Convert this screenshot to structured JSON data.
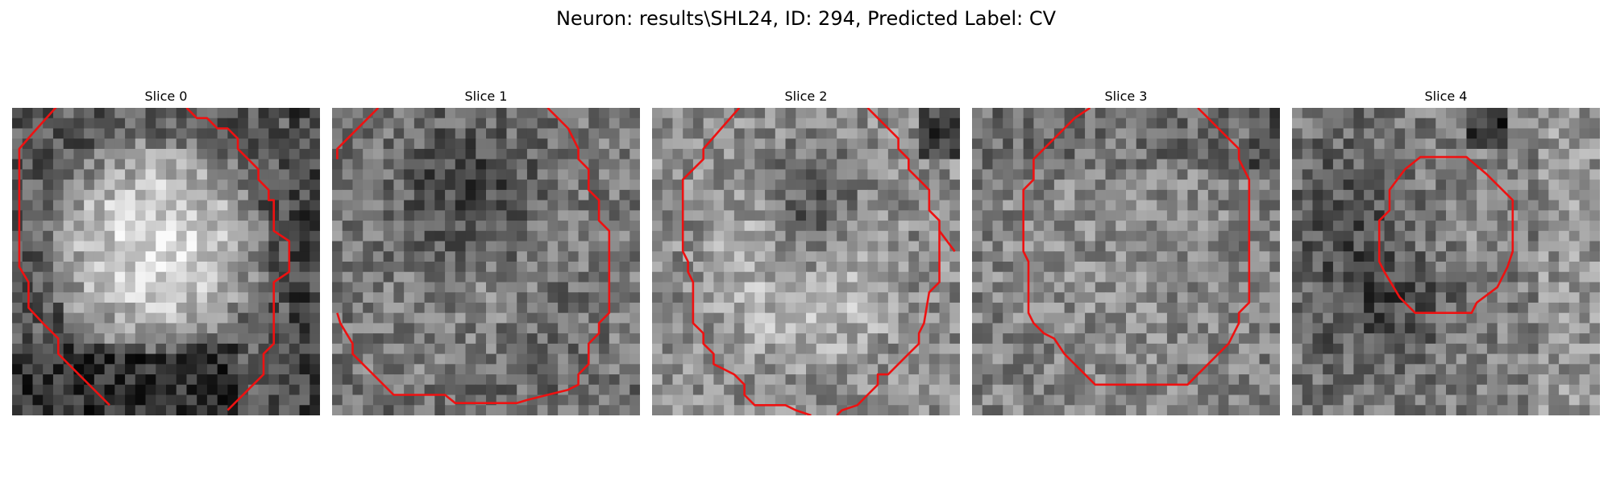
{
  "figure": {
    "title": "Neuron: results\\SHL24, ID: 294, Predicted Label: CV",
    "contour_color": "#ee1111"
  },
  "slices": [
    {
      "title": "Slice 0"
    },
    {
      "title": "Slice 1"
    },
    {
      "title": "Slice 2"
    },
    {
      "title": "Slice 3"
    },
    {
      "title": "Slice 4"
    }
  ]
}
